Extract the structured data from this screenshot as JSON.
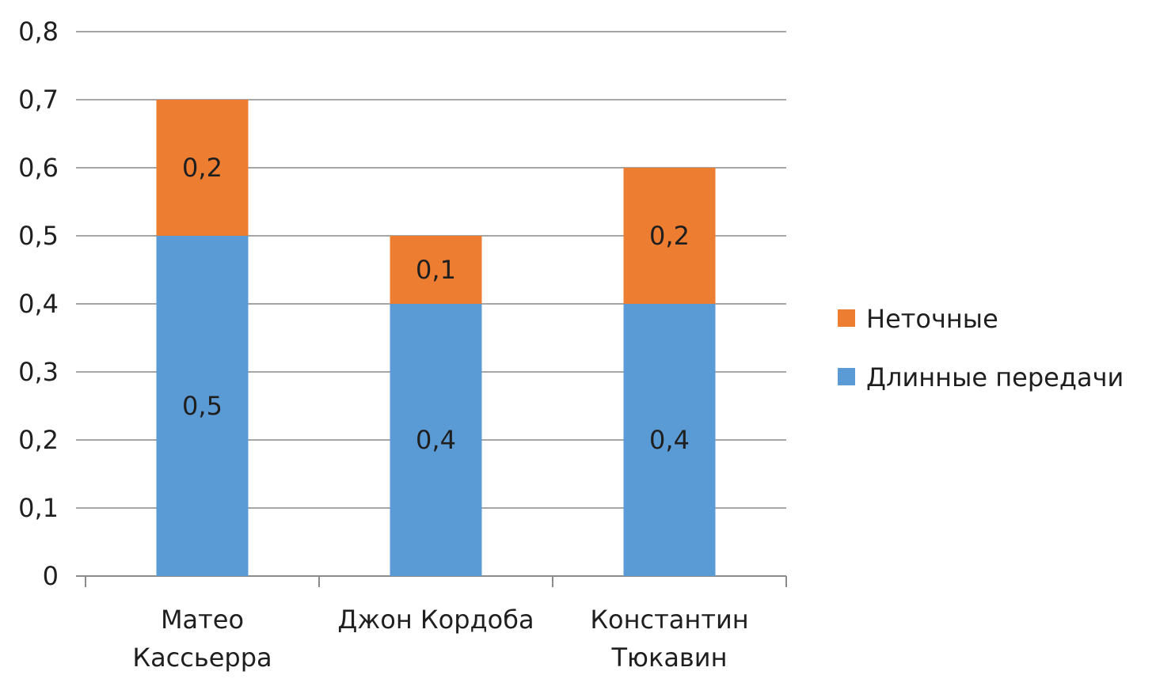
{
  "chart_data": {
    "type": "bar",
    "stacked": true,
    "categories": [
      [
        "Матео",
        "Кассьерра"
      ],
      [
        "Джон Кордоба"
      ],
      [
        "Константин",
        "Тюкавин"
      ]
    ],
    "series": [
      {
        "name": "Длинные передачи",
        "values": [
          0.5,
          0.4,
          0.4
        ],
        "labels": [
          "0,5",
          "0,4",
          "0,4"
        ],
        "color": "#5b9bd5"
      },
      {
        "name": "Неточные",
        "values": [
          0.2,
          0.1,
          0.2
        ],
        "labels": [
          "0,2",
          "0,1",
          "0,2"
        ],
        "color": "#ed7d31"
      }
    ],
    "ylim": [
      0,
      0.8
    ],
    "yticks": [
      0,
      0.1,
      0.2,
      0.3,
      0.4,
      0.5,
      0.6,
      0.7,
      0.8
    ],
    "ytick_labels": [
      "0",
      "0,1",
      "0,2",
      "0,3",
      "0,4",
      "0,5",
      "0,6",
      "0,7",
      "0,8"
    ],
    "grid": true,
    "legend_position": "right",
    "legend_order": [
      "Неточные",
      "Длинные передачи"
    ]
  }
}
